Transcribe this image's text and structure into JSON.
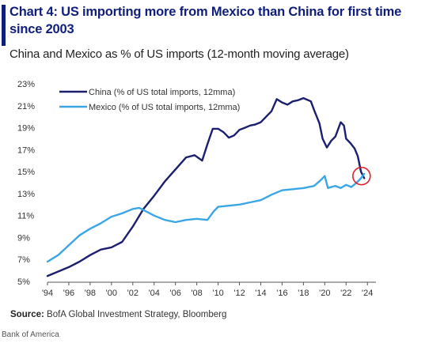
{
  "header": {
    "title": "Chart 4: US importing more from Mexico than China for first time since 2003",
    "subtitle": "China and Mexico as % of US imports (12-month moving average)"
  },
  "footer": {
    "source_label": "Source:",
    "source_text": "BofA Global Investment Strategy, Bloomberg",
    "attribution": "Bank of America"
  },
  "colors": {
    "china": "#1b1f6e",
    "mexico": "#3aa6e6",
    "highlight_circle": "#e0202a",
    "title": "#0f1e7a"
  },
  "chart_data": {
    "type": "line",
    "ylim": [
      5,
      23
    ],
    "xlim": [
      1994,
      2024.8
    ],
    "y_ticks": [
      5,
      7,
      9,
      11,
      13,
      15,
      17,
      19,
      21,
      23
    ],
    "y_tick_labels": [
      "5%",
      "7%",
      "9%",
      "11%",
      "13%",
      "15%",
      "17%",
      "19%",
      "21%",
      "23%"
    ],
    "x_ticks": [
      1994,
      1996,
      1998,
      2000,
      2002,
      2004,
      2006,
      2008,
      2010,
      2012,
      2014,
      2016,
      2018,
      2020,
      2022,
      2024
    ],
    "x_tick_labels": [
      "'94",
      "'96",
      "'98",
      "'00",
      "'02",
      "'04",
      "'06",
      "'08",
      "'10",
      "'12",
      "'14",
      "'16",
      "'18",
      "'20",
      "'22",
      "'24"
    ],
    "grid": false,
    "legend_position": "top-left",
    "annotation": "circle around the 2023 crossover of the two series",
    "series": [
      {
        "name": "China (% of US total imports, 12mma)",
        "color": "#1b1f6e",
        "points": [
          [
            1994.0,
            5.5
          ],
          [
            1995.0,
            5.9
          ],
          [
            1996.0,
            6.3
          ],
          [
            1997.0,
            6.8
          ],
          [
            1998.0,
            7.4
          ],
          [
            1999.0,
            7.9
          ],
          [
            2000.0,
            8.1
          ],
          [
            2001.0,
            8.6
          ],
          [
            2002.0,
            10.0
          ],
          [
            2003.0,
            11.6
          ],
          [
            2004.0,
            12.8
          ],
          [
            2005.0,
            14.1
          ],
          [
            2006.0,
            15.2
          ],
          [
            2007.0,
            16.3
          ],
          [
            2007.8,
            16.5
          ],
          [
            2008.5,
            16.0
          ],
          [
            2009.0,
            17.5
          ],
          [
            2009.5,
            18.9
          ],
          [
            2010.0,
            18.9
          ],
          [
            2010.5,
            18.6
          ],
          [
            2011.0,
            18.1
          ],
          [
            2011.5,
            18.3
          ],
          [
            2012.0,
            18.8
          ],
          [
            2012.5,
            19.0
          ],
          [
            2013.0,
            19.2
          ],
          [
            2013.5,
            19.3
          ],
          [
            2014.0,
            19.5
          ],
          [
            2015.0,
            20.5
          ],
          [
            2015.5,
            21.6
          ],
          [
            2016.0,
            21.3
          ],
          [
            2016.5,
            21.1
          ],
          [
            2017.0,
            21.4
          ],
          [
            2017.5,
            21.5
          ],
          [
            2018.0,
            21.7
          ],
          [
            2018.7,
            21.4
          ],
          [
            2019.0,
            20.6
          ],
          [
            2019.5,
            19.4
          ],
          [
            2019.8,
            18.0
          ],
          [
            2020.2,
            17.2
          ],
          [
            2020.6,
            17.8
          ],
          [
            2021.0,
            18.2
          ],
          [
            2021.5,
            19.5
          ],
          [
            2021.8,
            19.2
          ],
          [
            2022.0,
            18.0
          ],
          [
            2022.4,
            17.6
          ],
          [
            2022.8,
            17.1
          ],
          [
            2023.1,
            16.4
          ],
          [
            2023.4,
            15.0
          ],
          [
            2023.7,
            14.4
          ]
        ]
      },
      {
        "name": "Mexico (% of US total imports, 12mma)",
        "color": "#3aa6e6",
        "points": [
          [
            1994.0,
            6.8
          ],
          [
            1995.0,
            7.4
          ],
          [
            1996.0,
            8.3
          ],
          [
            1997.0,
            9.2
          ],
          [
            1998.0,
            9.8
          ],
          [
            1999.0,
            10.3
          ],
          [
            2000.0,
            10.9
          ],
          [
            2001.0,
            11.2
          ],
          [
            2002.0,
            11.6
          ],
          [
            2002.6,
            11.7
          ],
          [
            2003.0,
            11.5
          ],
          [
            2004.0,
            11.0
          ],
          [
            2005.0,
            10.6
          ],
          [
            2006.0,
            10.4
          ],
          [
            2007.0,
            10.6
          ],
          [
            2008.0,
            10.7
          ],
          [
            2009.0,
            10.6
          ],
          [
            2009.6,
            11.4
          ],
          [
            2010.0,
            11.8
          ],
          [
            2011.0,
            11.9
          ],
          [
            2012.0,
            12.0
          ],
          [
            2013.0,
            12.2
          ],
          [
            2014.0,
            12.4
          ],
          [
            2015.0,
            12.9
          ],
          [
            2016.0,
            13.3
          ],
          [
            2017.0,
            13.4
          ],
          [
            2018.0,
            13.5
          ],
          [
            2019.0,
            13.7
          ],
          [
            2019.6,
            14.2
          ],
          [
            2020.0,
            14.6
          ],
          [
            2020.3,
            13.5
          ],
          [
            2020.6,
            13.6
          ],
          [
            2021.0,
            13.7
          ],
          [
            2021.5,
            13.5
          ],
          [
            2022.0,
            13.8
          ],
          [
            2022.5,
            13.6
          ],
          [
            2023.0,
            14.0
          ],
          [
            2023.4,
            14.4
          ],
          [
            2023.7,
            14.8
          ]
        ]
      }
    ]
  }
}
